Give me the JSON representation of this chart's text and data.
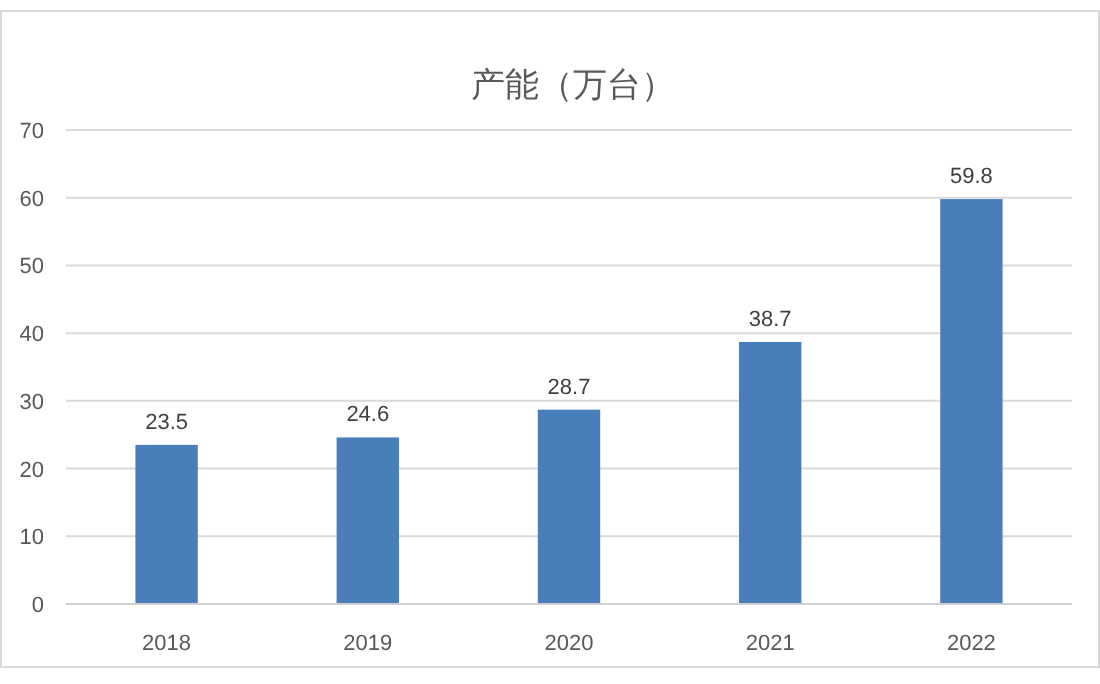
{
  "chart_data": {
    "type": "bar",
    "title": "产能（万台）",
    "categories": [
      "2018",
      "2019",
      "2020",
      "2021",
      "2022"
    ],
    "values": [
      23.5,
      24.6,
      28.7,
      38.7,
      59.8
    ],
    "color": "#4a7ebb",
    "ylim": [
      0,
      70
    ],
    "yticks": [
      0,
      10,
      20,
      30,
      40,
      50,
      60,
      70
    ],
    "grid": "y",
    "data_labels": true
  }
}
